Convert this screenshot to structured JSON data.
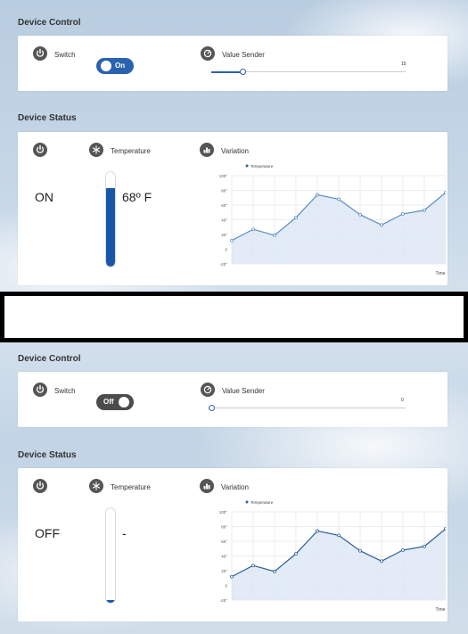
{
  "panels": [
    {
      "device_control_title": "Device Control",
      "switch_label": "Switch",
      "switch_state": "On",
      "switch_on": true,
      "value_sender_label": "Value Sender",
      "value_sender_value": "15",
      "value_sender_fraction": 0.16,
      "device_status_title": "Device Status",
      "power_status": "ON",
      "temperature_label": "Temperature",
      "temperature_value": "68º F",
      "temperature_fraction": 0.83,
      "variation_label": "Variation"
    },
    {
      "device_control_title": "Device Control",
      "switch_label": "Switch",
      "switch_state": "Off",
      "switch_on": false,
      "value_sender_label": "Value Sender",
      "value_sender_value": "0",
      "value_sender_fraction": 0.0,
      "device_status_title": "Device Status",
      "power_status": "OFF",
      "temperature_label": "Temperature",
      "temperature_value": "-",
      "temperature_fraction": 0.03,
      "variation_label": "Variation"
    }
  ],
  "colors": {
    "accent": "#2a63ad",
    "thermo_fill": "#1a56a6",
    "line_top": "#5b8ec2",
    "line_bottom": "#2f5f95",
    "area": "#dde8f4"
  },
  "chart_data": [
    {
      "type": "area",
      "legend": "Temperature",
      "xlabel": "Time",
      "ylabel": "",
      "ylim": [
        -20,
        100
      ],
      "yticks": [
        "100°",
        "80°",
        "60°",
        "40°",
        "20°",
        "0",
        "-20°"
      ],
      "series": [
        {
          "name": "Temperature",
          "values": [
            12,
            27,
            19,
            43,
            74,
            68,
            47,
            33,
            48,
            53,
            77
          ]
        }
      ]
    },
    {
      "type": "area",
      "legend": "Temperature",
      "xlabel": "Time",
      "ylabel": "",
      "ylim": [
        -20,
        100
      ],
      "yticks": [
        "100°",
        "80°",
        "60°",
        "40°",
        "20°",
        "0",
        "-20°"
      ],
      "series": [
        {
          "name": "Temperature",
          "values": [
            12,
            27,
            19,
            43,
            74,
            68,
            47,
            33,
            48,
            53,
            77
          ]
        }
      ]
    }
  ]
}
